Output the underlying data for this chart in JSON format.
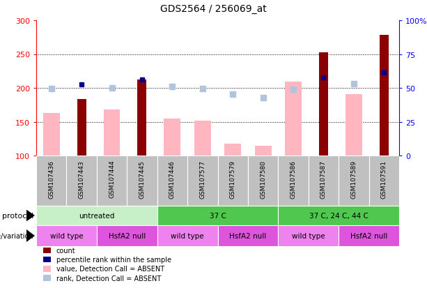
{
  "title": "GDS2564 / 256069_at",
  "samples": [
    "GSM107436",
    "GSM107443",
    "GSM107444",
    "GSM107445",
    "GSM107446",
    "GSM107577",
    "GSM107579",
    "GSM107580",
    "GSM107586",
    "GSM107587",
    "GSM107589",
    "GSM107591"
  ],
  "bar_values": [
    null,
    184,
    null,
    212,
    null,
    null,
    null,
    null,
    null,
    253,
    null,
    278
  ],
  "bar_absent_values": [
    163,
    null,
    168,
    null,
    155,
    152,
    118,
    114,
    209,
    null,
    191,
    null
  ],
  "rank_present": [
    null,
    205,
    null,
    212,
    null,
    null,
    null,
    null,
    null,
    215,
    null,
    223
  ],
  "rank_absent": [
    199,
    null,
    200,
    null,
    202,
    199,
    191,
    186,
    198,
    null,
    206,
    null
  ],
  "ylim": [
    100,
    300
  ],
  "y_ticks": [
    100,
    150,
    200,
    250,
    300
  ],
  "y2_ticks": [
    0,
    25,
    50,
    75,
    100
  ],
  "y2_labels": [
    "0",
    "25",
    "50",
    "75",
    "100%"
  ],
  "bar_color": "#8b0000",
  "bar_absent_color": "#ffb6c1",
  "rank_present_color": "#00008b",
  "rank_absent_color": "#b0c4de",
  "x_bg_color": "#c0c0c0",
  "protocol_groups": [
    {
      "label": "untreated",
      "start": 0,
      "end": 4,
      "color": "#c8f0c8"
    },
    {
      "label": "37 C",
      "start": 4,
      "end": 8,
      "color": "#50c850"
    },
    {
      "label": "37 C, 24 C, 44 C",
      "start": 8,
      "end": 12,
      "color": "#50c850"
    }
  ],
  "genotype_groups": [
    {
      "label": "wild type",
      "start": 0,
      "end": 2,
      "color": "#ee82ee"
    },
    {
      "label": "HsfA2 null",
      "start": 2,
      "end": 4,
      "color": "#dd55dd"
    },
    {
      "label": "wild type",
      "start": 4,
      "end": 6,
      "color": "#ee82ee"
    },
    {
      "label": "HsfA2 null",
      "start": 6,
      "end": 8,
      "color": "#dd55dd"
    },
    {
      "label": "wild type",
      "start": 8,
      "end": 10,
      "color": "#ee82ee"
    },
    {
      "label": "HsfA2 null",
      "start": 10,
      "end": 12,
      "color": "#dd55dd"
    }
  ],
  "legend_items": [
    {
      "color": "#8b0000",
      "label": "count"
    },
    {
      "color": "#00008b",
      "label": "percentile rank within the sample"
    },
    {
      "color": "#ffb6c1",
      "label": "value, Detection Call = ABSENT"
    },
    {
      "color": "#b0c4de",
      "label": "rank, Detection Call = ABSENT"
    }
  ]
}
